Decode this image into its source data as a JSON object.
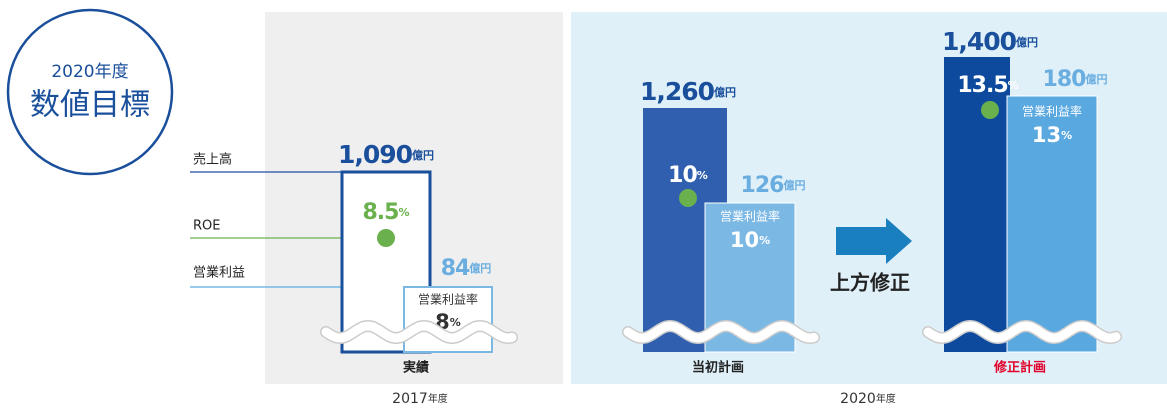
{
  "badge": {
    "year": "2020年度",
    "title": "数値目標"
  },
  "legend": [
    "売上高",
    "ROE",
    "営業利益"
  ],
  "groups": [
    {
      "label": "実績",
      "sales": {
        "value": "1,090",
        "unit": "億円"
      },
      "roe": {
        "value": "8.5",
        "unit": "%"
      },
      "profit": {
        "value": "84",
        "unit": "億円"
      },
      "margin": {
        "label": "営業利益率",
        "value": "8",
        "unit": "%"
      }
    },
    {
      "label": "当初計画",
      "sales": {
        "value": "1,260",
        "unit": "億円"
      },
      "roe": {
        "value": "10",
        "unit": "%"
      },
      "profit": {
        "value": "126",
        "unit": "億円"
      },
      "margin": {
        "label": "営業利益率",
        "value": "10",
        "unit": "%"
      }
    },
    {
      "label": "修正計画",
      "sales": {
        "value": "1,400",
        "unit": "億円"
      },
      "roe": {
        "value": "13.5",
        "unit": "%"
      },
      "profit": {
        "value": "180",
        "unit": "億円"
      },
      "margin": {
        "label": "営業利益率",
        "value": "13",
        "unit": "%"
      }
    }
  ],
  "arrow_label": "上方修正",
  "years": [
    {
      "value": "2017",
      "unit": "年度"
    },
    {
      "value": "2020",
      "unit": "年度"
    }
  ]
}
